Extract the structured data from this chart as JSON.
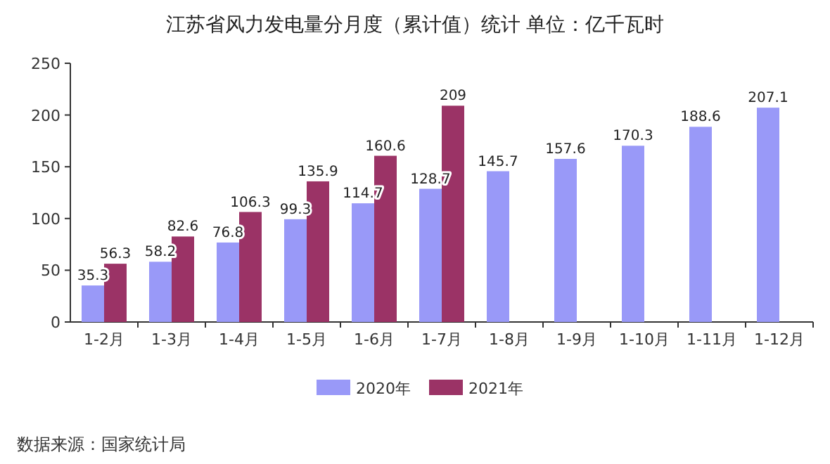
{
  "chart_data": {
    "type": "bar",
    "title": "江苏省风力发电量分月度（累计值）统计 单位：亿千瓦时",
    "categories": [
      "1-2月",
      "1-3月",
      "1-4月",
      "1-5月",
      "1-6月",
      "1-7月",
      "1-8月",
      "1-9月",
      "1-10月",
      "1-11月",
      "1-12月"
    ],
    "series": [
      {
        "name": "2020年",
        "color": "#9999f8",
        "values": [
          35.3,
          58.2,
          76.8,
          99.3,
          114.7,
          128.7,
          145.7,
          157.6,
          170.3,
          188.6,
          207.1
        ]
      },
      {
        "name": "2021年",
        "color": "#9b3366",
        "values": [
          56.3,
          82.6,
          106.3,
          135.9,
          160.6,
          209,
          null,
          null,
          null,
          null,
          null
        ]
      }
    ],
    "ylim": [
      0,
      250
    ],
    "yticks": [
      0,
      50,
      100,
      150,
      200,
      250
    ],
    "data_labels": true,
    "legend": "bottom",
    "annotations": [
      "数据来源：国家统计局"
    ]
  }
}
